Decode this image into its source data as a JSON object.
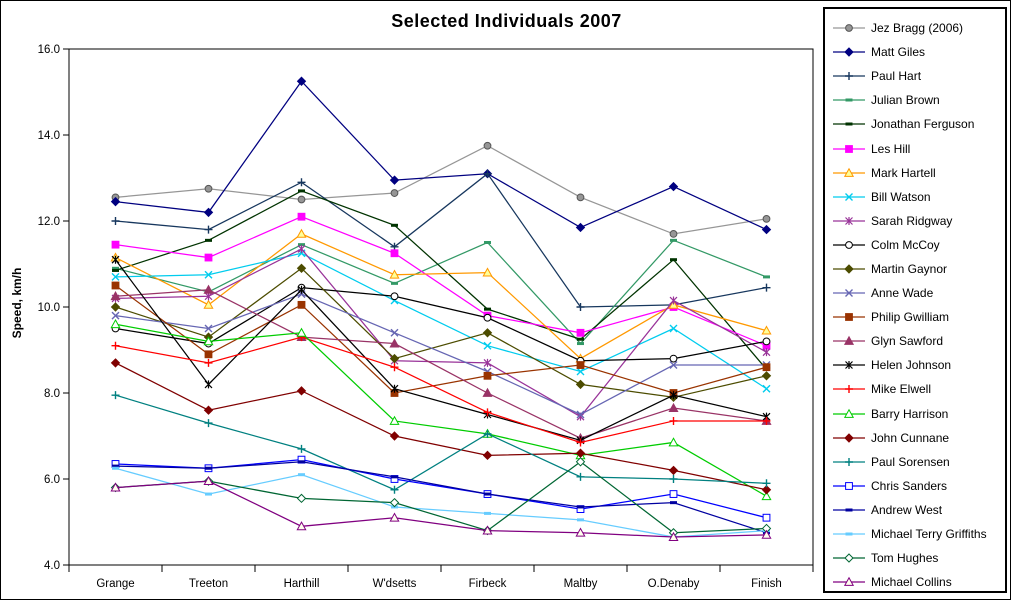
{
  "chart_data": {
    "type": "line",
    "title": "Selected Individuals 2007",
    "ylabel": "Speed, km/h",
    "xlabel": "",
    "ylim": [
      4.0,
      16.0
    ],
    "ytick_step": 2.0,
    "y_tick_labels": [
      "16.0",
      "14.0",
      "12.0",
      "10.0",
      "8.0",
      "6.0",
      "4.0"
    ],
    "grid": "off",
    "legend_position": "right",
    "categories": [
      "Grange",
      "Treeton",
      "Harthill",
      "W'dsetts",
      "Firbeck",
      "Maltby",
      "O.Denaby",
      "Finish"
    ],
    "series": [
      {
        "name": "Jez Bragg (2006)",
        "color": "#969696",
        "marker": "circle",
        "marker_fill": "#969696",
        "values": [
          12.55,
          12.75,
          12.5,
          12.65,
          13.75,
          12.55,
          11.7,
          12.05
        ]
      },
      {
        "name": "Matt Giles",
        "color": "#000080",
        "marker": "diamond",
        "marker_fill": "#000080",
        "values": [
          12.45,
          12.2,
          15.25,
          12.95,
          13.1,
          11.85,
          12.8,
          11.8
        ]
      },
      {
        "name": "Paul Hart",
        "color": "#17375E",
        "marker": "plus",
        "marker_fill": "#17375E",
        "values": [
          12.0,
          11.8,
          12.9,
          11.4,
          13.1,
          10.0,
          10.05,
          10.45
        ]
      },
      {
        "name": "Julian Brown",
        "color": "#339966",
        "marker": "dash",
        "marker_fill": "#339966",
        "values": [
          10.9,
          10.35,
          11.45,
          10.55,
          11.5,
          9.15,
          11.55,
          10.7
        ]
      },
      {
        "name": "Jonathan Ferguson",
        "color": "#003300",
        "marker": "dash",
        "marker_fill": "#003300",
        "values": [
          10.85,
          11.55,
          12.7,
          11.9,
          9.95,
          9.25,
          11.1,
          8.55
        ]
      },
      {
        "name": "Les Hill",
        "color": "#FF00FF",
        "marker": "square",
        "marker_fill": "#FF00FF",
        "values": [
          11.45,
          11.15,
          12.1,
          11.25,
          9.8,
          9.4,
          10.0,
          9.1
        ]
      },
      {
        "name": "Mark Hartell",
        "color": "#FF9900",
        "marker": "triangle",
        "marker_fill": "#FFFF99",
        "values": [
          11.15,
          10.05,
          11.7,
          10.75,
          10.8,
          8.8,
          10.05,
          9.45
        ]
      },
      {
        "name": "Bill Watson",
        "color": "#00CCEE",
        "marker": "x",
        "marker_fill": "#00CCEE",
        "values": [
          10.7,
          10.75,
          11.25,
          10.15,
          9.1,
          8.5,
          9.5,
          8.1
        ]
      },
      {
        "name": "Sarah Ridgway",
        "color": "#993399",
        "marker": "asterisk",
        "marker_fill": "#993399",
        "values": [
          10.2,
          10.25,
          11.35,
          8.75,
          8.7,
          7.45,
          10.15,
          8.95
        ]
      },
      {
        "name": "Colm McCoy",
        "color": "#000000",
        "marker": "circle",
        "marker_fill": "#FFFFFF",
        "values": [
          9.5,
          9.15,
          10.45,
          10.25,
          9.75,
          8.75,
          8.8,
          9.2
        ]
      },
      {
        "name": "Martin Gaynor",
        "color": "#4C4C00",
        "marker": "diamond",
        "marker_fill": "#4C4C00",
        "values": [
          10.0,
          9.3,
          10.9,
          8.8,
          9.4,
          8.2,
          7.9,
          8.4
        ]
      },
      {
        "name": "Anne Wade",
        "color": "#6666B3",
        "marker": "x",
        "marker_fill": "#6666B3",
        "values": [
          9.8,
          9.5,
          10.3,
          9.4,
          8.5,
          7.5,
          8.65,
          8.65
        ]
      },
      {
        "name": "Philip Gwilliam",
        "color": "#993300",
        "marker": "square",
        "marker_fill": "#993300",
        "values": [
          10.5,
          8.9,
          10.05,
          8.0,
          8.4,
          8.65,
          8.0,
          8.6
        ]
      },
      {
        "name": "Glyn Sawford",
        "color": "#993366",
        "marker": "triangle",
        "marker_fill": "#993366",
        "values": [
          10.25,
          10.4,
          9.3,
          9.15,
          8.0,
          6.95,
          7.65,
          7.35
        ]
      },
      {
        "name": "Helen Johnson",
        "color": "#000000",
        "marker": "asterisk",
        "marker_fill": "#000000",
        "values": [
          11.1,
          8.2,
          10.4,
          8.1,
          7.5,
          6.9,
          7.95,
          7.45
        ]
      },
      {
        "name": "Mike Elwell",
        "color": "#FF0000",
        "marker": "plus",
        "marker_fill": "#FF0000",
        "values": [
          9.1,
          8.7,
          9.3,
          8.6,
          7.55,
          6.85,
          7.35,
          7.35
        ]
      },
      {
        "name": "Barry Harrison",
        "color": "#00CC00",
        "marker": "triangle",
        "marker_fill": "#FFFFFF",
        "values": [
          9.6,
          9.2,
          9.4,
          7.35,
          7.05,
          6.55,
          6.85,
          5.6
        ]
      },
      {
        "name": "John Cunnane",
        "color": "#800000",
        "marker": "diamond",
        "marker_fill": "#800000",
        "values": [
          8.7,
          7.6,
          8.05,
          7.0,
          6.55,
          6.6,
          6.2,
          5.75
        ]
      },
      {
        "name": "Paul Sorensen",
        "color": "#008080",
        "marker": "plus",
        "marker_fill": "#008080",
        "values": [
          7.95,
          7.3,
          6.7,
          5.75,
          7.05,
          6.05,
          6.0,
          5.9
        ]
      },
      {
        "name": "Chris Sanders",
        "color": "#0000FF",
        "marker": "square",
        "marker_fill": "#FFFFFF",
        "values": [
          6.35,
          6.25,
          6.45,
          6.0,
          5.65,
          5.3,
          5.65,
          5.1
        ]
      },
      {
        "name": "Andrew West",
        "color": "#0000A0",
        "marker": "dash",
        "marker_fill": "#0000A0",
        "values": [
          6.3,
          6.25,
          6.4,
          6.05,
          5.65,
          5.35,
          5.45,
          4.75
        ]
      },
      {
        "name": "Michael Terry Griffiths",
        "color": "#66CCFF",
        "marker": "dash",
        "marker_fill": "#66CCFF",
        "values": [
          6.25,
          5.65,
          6.1,
          5.35,
          5.2,
          5.05,
          4.65,
          4.8
        ]
      },
      {
        "name": "Tom Hughes",
        "color": "#006633",
        "marker": "diamond",
        "marker_fill": "#FFFFFF",
        "values": [
          5.8,
          5.95,
          5.55,
          5.45,
          4.8,
          6.4,
          4.75,
          4.85
        ]
      },
      {
        "name": "Michael Collins",
        "color": "#800080",
        "marker": "triangle",
        "marker_fill": "#FFFFEE",
        "values": [
          5.8,
          5.95,
          4.9,
          5.1,
          4.8,
          4.75,
          4.65,
          4.7
        ]
      }
    ]
  }
}
